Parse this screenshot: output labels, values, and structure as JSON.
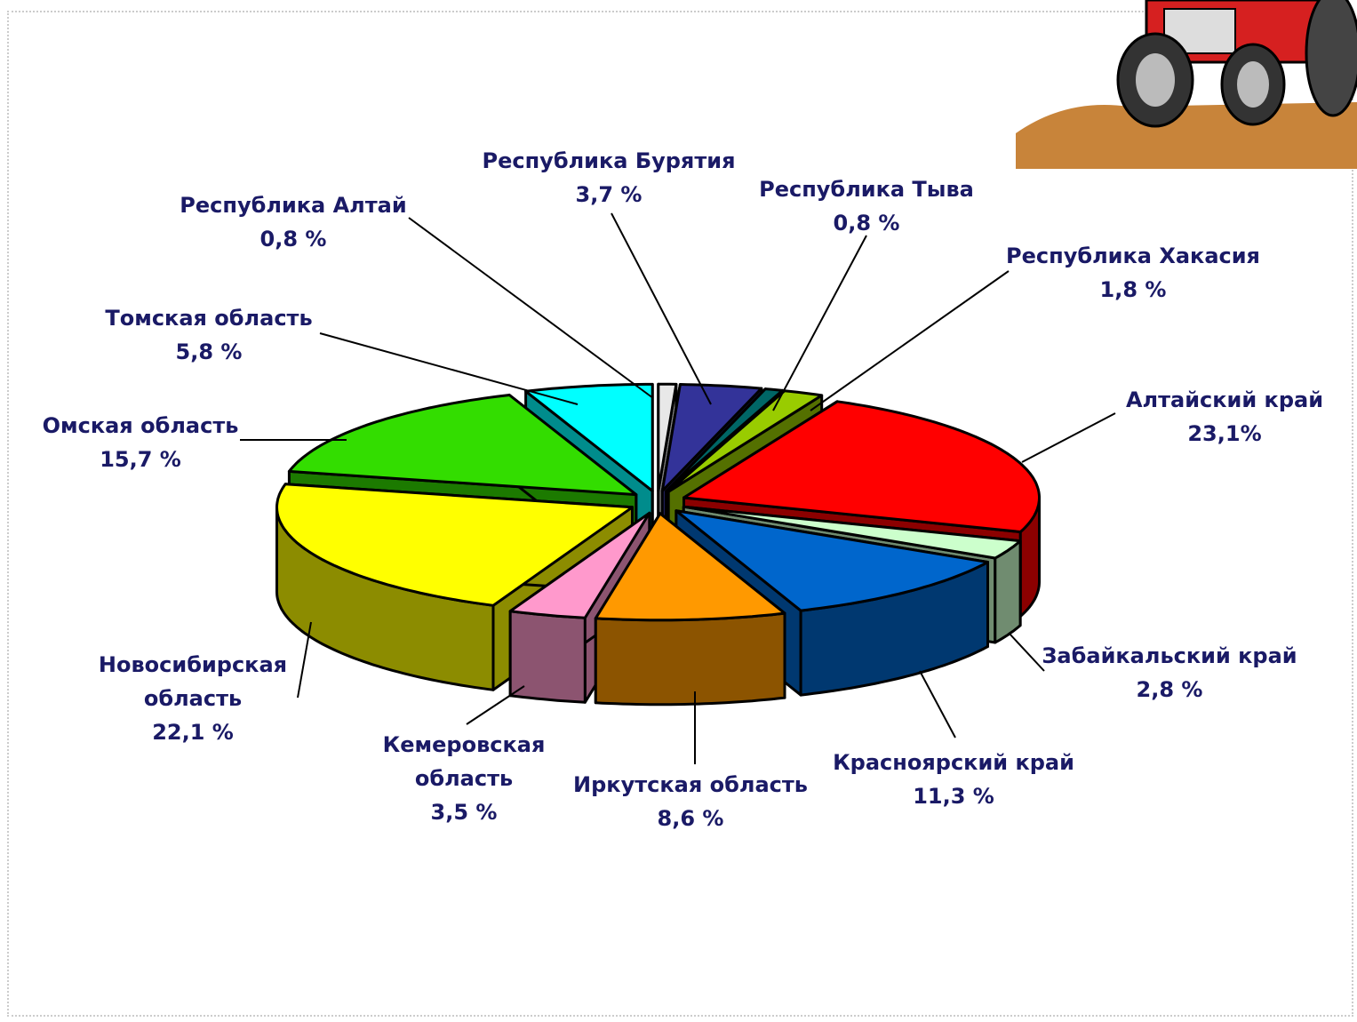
{
  "chart_data": {
    "type": "pie3d",
    "categories": [
      "Республика Алтай",
      "Республика Бурятия",
      "Республика Тыва",
      "Республика Хакасия",
      "Алтайский край",
      "Забайкальский край",
      "Красноярский край",
      "Иркутская область",
      "Кемеровская область",
      "Новосибирская область",
      "Омская область",
      "Томская область"
    ],
    "values": [
      0.8,
      3.7,
      0.8,
      1.8,
      23.1,
      2.8,
      11.3,
      8.6,
      3.5,
      22.1,
      15.7,
      5.8
    ],
    "value_labels": [
      "0,8 %",
      "3,7 %",
      "0,8 %",
      "1,8 %",
      "23,1%",
      "2,8 %",
      "11,3 %",
      "8,6 %",
      "3,5 %",
      "22,1 %",
      "15,7 %",
      "5,8 %"
    ],
    "colors": [
      "#e8e8e8",
      "#333399",
      "#006666",
      "#99cc00",
      "#ff0000",
      "#ccffcc",
      "#0066cc",
      "#ff9900",
      "#ff99cc",
      "#ffff00",
      "#33dd00",
      "#00ffff"
    ]
  }
}
